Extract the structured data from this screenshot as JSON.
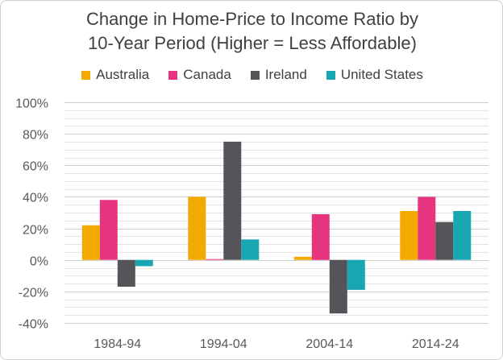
{
  "chart_data": {
    "type": "bar",
    "title": "Change in Home-Price to Income Ratio by 10-Year Period (Higher = Less Affordable)",
    "title_lines": [
      "Change in Home-Price to Income Ratio by",
      "10-Year Period (Higher = Less Affordable)"
    ],
    "categories": [
      "1984-94",
      "1994-04",
      "2004-14",
      "2014-24"
    ],
    "series": [
      {
        "name": "Australia",
        "color": "#F2A900",
        "values": [
          22,
          40,
          2,
          31
        ]
      },
      {
        "name": "Canada",
        "color": "#E6347E",
        "values": [
          38,
          0.5,
          29,
          40
        ]
      },
      {
        "name": "Ireland",
        "color": "#555459",
        "values": [
          -17,
          75,
          -34,
          24
        ]
      },
      {
        "name": "United States",
        "color": "#19A6B3",
        "values": [
          -4,
          13,
          -19,
          31
        ]
      }
    ],
    "ylim": [
      -40,
      100
    ],
    "yticks": [
      -40,
      -20,
      0,
      20,
      40,
      60,
      80,
      100
    ],
    "ytick_labels": [
      "-40%",
      "-20%",
      "0%",
      "20%",
      "40%",
      "60%",
      "80%",
      "100%"
    ],
    "minor_gridline_step": 5,
    "xlabel": "",
    "ylabel": "",
    "legend_position": "top"
  }
}
